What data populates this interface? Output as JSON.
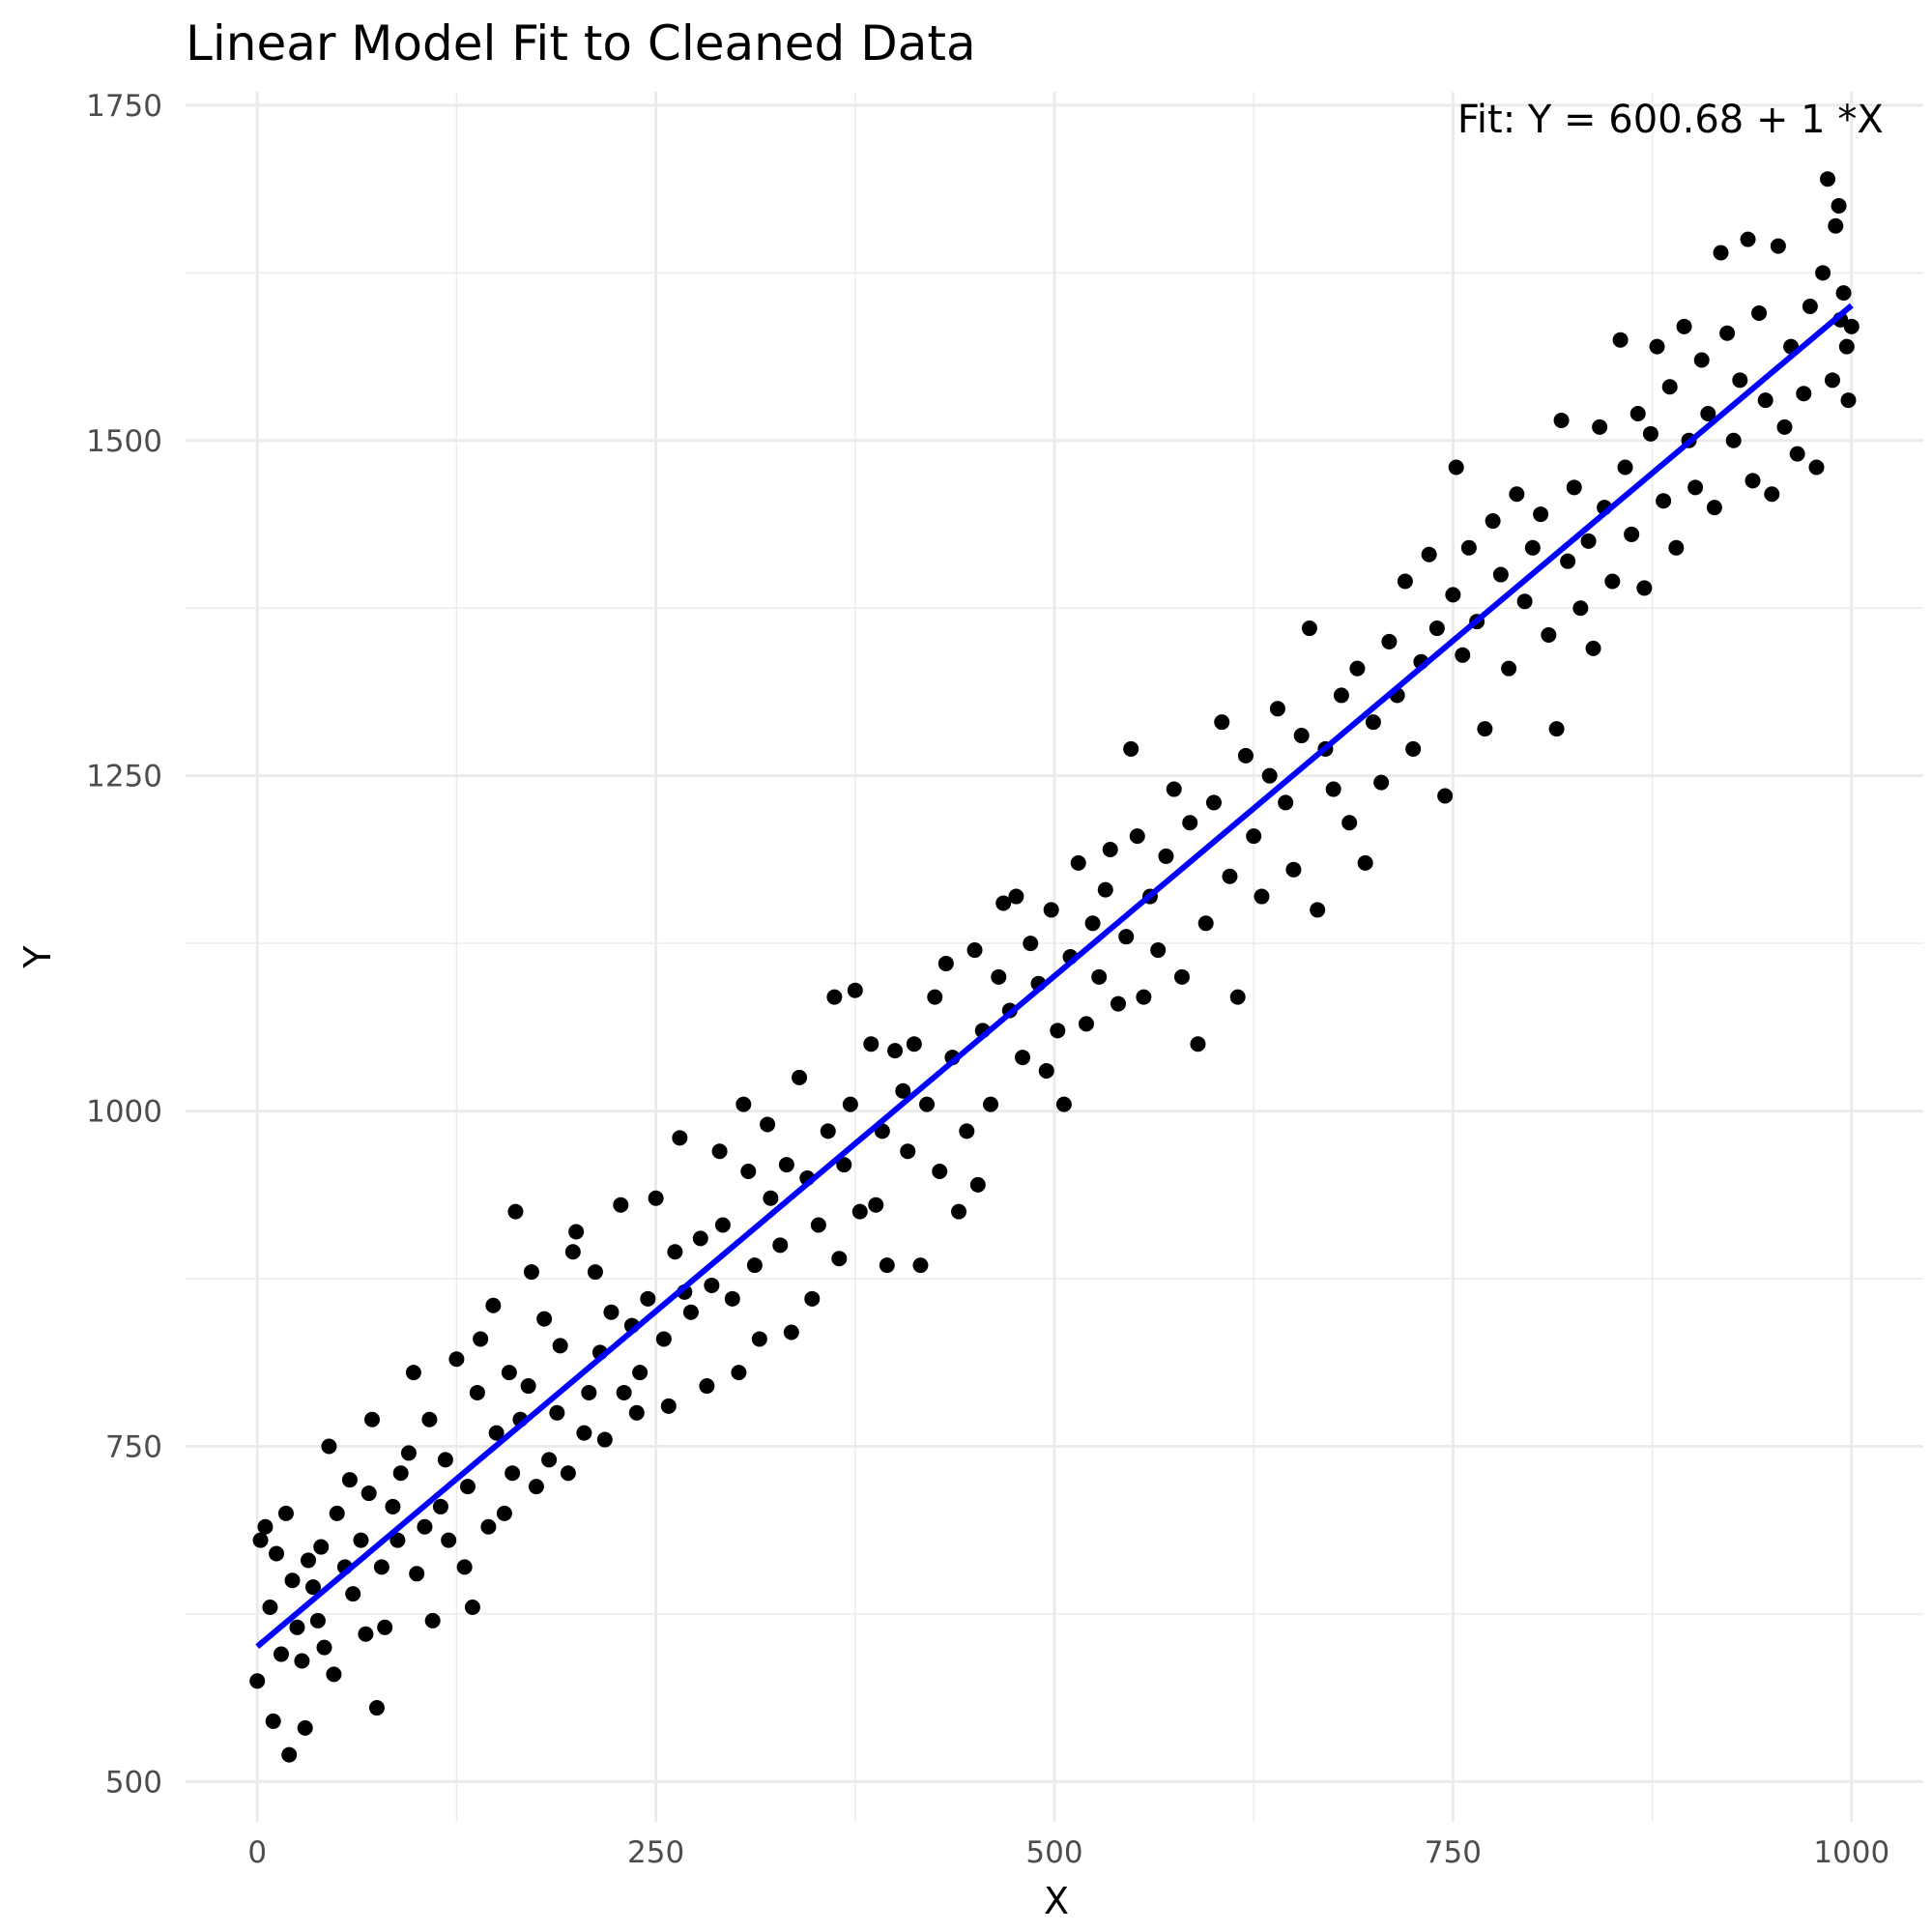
{
  "chart_data": {
    "type": "scatter",
    "title": "Linear Model Fit to Cleaned Data",
    "xlabel": "X",
    "ylabel": "Y",
    "xlim": [
      -45,
      1045
    ],
    "ylim": [
      470,
      1760
    ],
    "x_ticks": [
      0,
      250,
      500,
      750,
      1000
    ],
    "y_ticks": [
      500,
      750,
      1000,
      1250,
      1500,
      1750
    ],
    "x_minor_ticks": [
      125,
      375,
      625,
      875
    ],
    "y_minor_ticks": [
      625,
      875,
      1125,
      1375,
      1625
    ],
    "grid": true,
    "annotation": {
      "text": "Fit: Y = 600.68 + 1 *X",
      "x": 1020,
      "y": 1740,
      "anchor": "end"
    },
    "fit": {
      "intercept": 600.68,
      "slope": 1,
      "x_range": [
        0,
        1000
      ],
      "color": "#0000ff"
    },
    "point_color": "#000000",
    "points": [
      [
        0,
        575
      ],
      [
        2,
        680
      ],
      [
        5,
        690
      ],
      [
        8,
        630
      ],
      [
        10,
        545
      ],
      [
        12,
        670
      ],
      [
        15,
        595
      ],
      [
        18,
        700
      ],
      [
        20,
        520
      ],
      [
        22,
        650
      ],
      [
        25,
        615
      ],
      [
        28,
        590
      ],
      [
        30,
        540
      ],
      [
        32,
        665
      ],
      [
        35,
        645
      ],
      [
        38,
        620
      ],
      [
        40,
        675
      ],
      [
        42,
        600
      ],
      [
        45,
        750
      ],
      [
        48,
        580
      ],
      [
        50,
        700
      ],
      [
        55,
        660
      ],
      [
        58,
        725
      ],
      [
        60,
        640
      ],
      [
        65,
        680
      ],
      [
        68,
        610
      ],
      [
        70,
        715
      ],
      [
        72,
        770
      ],
      [
        75,
        555
      ],
      [
        78,
        660
      ],
      [
        80,
        615
      ],
      [
        85,
        705
      ],
      [
        88,
        680
      ],
      [
        90,
        730
      ],
      [
        95,
        745
      ],
      [
        98,
        805
      ],
      [
        100,
        655
      ],
      [
        105,
        690
      ],
      [
        108,
        770
      ],
      [
        110,
        620
      ],
      [
        115,
        705
      ],
      [
        118,
        740
      ],
      [
        120,
        680
      ],
      [
        125,
        815
      ],
      [
        130,
        660
      ],
      [
        132,
        720
      ],
      [
        135,
        630
      ],
      [
        138,
        790
      ],
      [
        140,
        830
      ],
      [
        145,
        690
      ],
      [
        148,
        855
      ],
      [
        150,
        760
      ],
      [
        155,
        700
      ],
      [
        158,
        805
      ],
      [
        160,
        730
      ],
      [
        162,
        925
      ],
      [
        165,
        770
      ],
      [
        170,
        795
      ],
      [
        172,
        880
      ],
      [
        175,
        720
      ],
      [
        180,
        845
      ],
      [
        183,
        740
      ],
      [
        188,
        775
      ],
      [
        190,
        825
      ],
      [
        195,
        730
      ],
      [
        198,
        895
      ],
      [
        200,
        910
      ],
      [
        205,
        760
      ],
      [
        208,
        790
      ],
      [
        212,
        880
      ],
      [
        215,
        820
      ],
      [
        218,
        755
      ],
      [
        222,
        850
      ],
      [
        228,
        930
      ],
      [
        230,
        790
      ],
      [
        235,
        840
      ],
      [
        238,
        775
      ],
      [
        240,
        805
      ],
      [
        245,
        860
      ],
      [
        250,
        935
      ],
      [
        255,
        830
      ],
      [
        258,
        780
      ],
      [
        262,
        895
      ],
      [
        265,
        980
      ],
      [
        268,
        865
      ],
      [
        272,
        850
      ],
      [
        278,
        905
      ],
      [
        282,
        795
      ],
      [
        285,
        870
      ],
      [
        290,
        970
      ],
      [
        292,
        915
      ],
      [
        298,
        860
      ],
      [
        302,
        805
      ],
      [
        305,
        1005
      ],
      [
        308,
        955
      ],
      [
        312,
        885
      ],
      [
        315,
        830
      ],
      [
        320,
        990
      ],
      [
        322,
        935
      ],
      [
        328,
        900
      ],
      [
        332,
        960
      ],
      [
        335,
        835
      ],
      [
        340,
        1025
      ],
      [
        345,
        950
      ],
      [
        348,
        860
      ],
      [
        352,
        915
      ],
      [
        358,
        985
      ],
      [
        362,
        1085
      ],
      [
        365,
        890
      ],
      [
        368,
        960
      ],
      [
        372,
        1005
      ],
      [
        375,
        1090
      ],
      [
        378,
        925
      ],
      [
        385,
        1050
      ],
      [
        388,
        930
      ],
      [
        392,
        985
      ],
      [
        395,
        885
      ],
      [
        400,
        1045
      ],
      [
        405,
        1015
      ],
      [
        408,
        970
      ],
      [
        412,
        1050
      ],
      [
        416,
        885
      ],
      [
        420,
        1005
      ],
      [
        425,
        1085
      ],
      [
        428,
        955
      ],
      [
        432,
        1110
      ],
      [
        436,
        1040
      ],
      [
        440,
        925
      ],
      [
        445,
        985
      ],
      [
        450,
        1120
      ],
      [
        452,
        945
      ],
      [
        455,
        1060
      ],
      [
        460,
        1005
      ],
      [
        465,
        1100
      ],
      [
        468,
        1155
      ],
      [
        472,
        1075
      ],
      [
        476,
        1160
      ],
      [
        480,
        1040
      ],
      [
        485,
        1125
      ],
      [
        490,
        1095
      ],
      [
        495,
        1030
      ],
      [
        498,
        1150
      ],
      [
        502,
        1060
      ],
      [
        506,
        1005
      ],
      [
        510,
        1115
      ],
      [
        515,
        1185
      ],
      [
        520,
        1065
      ],
      [
        524,
        1140
      ],
      [
        528,
        1100
      ],
      [
        532,
        1165
      ],
      [
        535,
        1195
      ],
      [
        540,
        1080
      ],
      [
        545,
        1130
      ],
      [
        548,
        1270
      ],
      [
        552,
        1205
      ],
      [
        556,
        1085
      ],
      [
        560,
        1160
      ],
      [
        565,
        1120
      ],
      [
        570,
        1190
      ],
      [
        575,
        1240
      ],
      [
        580,
        1100
      ],
      [
        585,
        1215
      ],
      [
        590,
        1050
      ],
      [
        595,
        1140
      ],
      [
        600,
        1230
      ],
      [
        605,
        1290
      ],
      [
        610,
        1175
      ],
      [
        615,
        1085
      ],
      [
        620,
        1265
      ],
      [
        625,
        1205
      ],
      [
        630,
        1160
      ],
      [
        635,
        1250
      ],
      [
        640,
        1300
      ],
      [
        645,
        1230
      ],
      [
        650,
        1180
      ],
      [
        655,
        1280
      ],
      [
        660,
        1360
      ],
      [
        665,
        1150
      ],
      [
        670,
        1270
      ],
      [
        675,
        1240
      ],
      [
        680,
        1310
      ],
      [
        685,
        1215
      ],
      [
        690,
        1330
      ],
      [
        695,
        1185
      ],
      [
        700,
        1290
      ],
      [
        705,
        1245
      ],
      [
        710,
        1350
      ],
      [
        715,
        1310
      ],
      [
        720,
        1395
      ],
      [
        725,
        1270
      ],
      [
        730,
        1335
      ],
      [
        735,
        1415
      ],
      [
        740,
        1360
      ],
      [
        745,
        1235
      ],
      [
        750,
        1385
      ],
      [
        752,
        1480
      ],
      [
        756,
        1340
      ],
      [
        760,
        1420
      ],
      [
        765,
        1365
      ],
      [
        770,
        1285
      ],
      [
        775,
        1440
      ],
      [
        780,
        1400
      ],
      [
        785,
        1330
      ],
      [
        790,
        1460
      ],
      [
        795,
        1380
      ],
      [
        800,
        1420
      ],
      [
        805,
        1445
      ],
      [
        810,
        1355
      ],
      [
        815,
        1285
      ],
      [
        818,
        1515
      ],
      [
        822,
        1410
      ],
      [
        826,
        1465
      ],
      [
        830,
        1375
      ],
      [
        835,
        1425
      ],
      [
        838,
        1345
      ],
      [
        842,
        1510
      ],
      [
        845,
        1450
      ],
      [
        850,
        1395
      ],
      [
        855,
        1575
      ],
      [
        858,
        1480
      ],
      [
        862,
        1430
      ],
      [
        866,
        1520
      ],
      [
        870,
        1390
      ],
      [
        874,
        1505
      ],
      [
        878,
        1570
      ],
      [
        882,
        1455
      ],
      [
        886,
        1540
      ],
      [
        890,
        1420
      ],
      [
        895,
        1585
      ],
      [
        898,
        1500
      ],
      [
        902,
        1465
      ],
      [
        906,
        1560
      ],
      [
        910,
        1520
      ],
      [
        914,
        1450
      ],
      [
        918,
        1640
      ],
      [
        922,
        1580
      ],
      [
        926,
        1500
      ],
      [
        930,
        1545
      ],
      [
        935,
        1650
      ],
      [
        938,
        1470
      ],
      [
        942,
        1595
      ],
      [
        946,
        1530
      ],
      [
        950,
        1460
      ],
      [
        954,
        1645
      ],
      [
        958,
        1510
      ],
      [
        962,
        1570
      ],
      [
        966,
        1490
      ],
      [
        970,
        1535
      ],
      [
        974,
        1600
      ],
      [
        978,
        1480
      ],
      [
        982,
        1625
      ],
      [
        985,
        1695
      ],
      [
        988,
        1545
      ],
      [
        990,
        1660
      ],
      [
        992,
        1675
      ],
      [
        995,
        1610
      ],
      [
        998,
        1530
      ],
      [
        1000,
        1585
      ],
      [
        997,
        1570
      ],
      [
        993,
        1590
      ]
    ]
  }
}
